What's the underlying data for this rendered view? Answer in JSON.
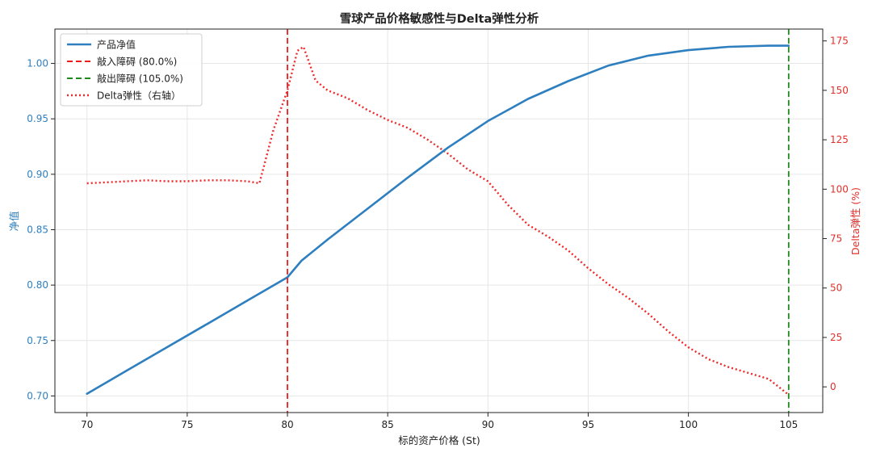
{
  "chart_data": {
    "type": "line",
    "title": "雪球产品价格敏感性与Delta弹性分析",
    "xlabel": "标的资产价格 (St)",
    "ylabel_left": "净值",
    "ylabel_right": "Delta弹性 (%)",
    "xlim": [
      68.4,
      106.7
    ],
    "ylim_left": [
      0.685,
      1.031
    ],
    "ylim_right": [
      -13,
      181
    ],
    "x_ticks": [
      70,
      75,
      80,
      85,
      90,
      95,
      100,
      105
    ],
    "y_ticks_left": [
      0.7,
      0.75,
      0.8,
      0.85,
      0.9,
      0.95,
      1.0
    ],
    "y_ticks_right": [
      0,
      25,
      50,
      75,
      100,
      125,
      150,
      175
    ],
    "grid": true,
    "legend_position": "upper-left",
    "colors": {
      "nav": "#2e7fbf",
      "knock_in": "#ee1c1c",
      "knock_out": "#1e8a1e",
      "delta": "#ef2a2a",
      "left_axis": "#2e7fbf",
      "right_axis": "#e0302b"
    },
    "legend": [
      {
        "label": "产品净值",
        "style": "solid",
        "color": "#2e7fbf"
      },
      {
        "label": "敲入障碍 (80.0%)",
        "style": "dashed",
        "color": "#ee1c1c"
      },
      {
        "label": "敲出障碍 (105.0%)",
        "style": "dashed",
        "color": "#1e8a1e"
      },
      {
        "label": "Delta弹性（右轴）",
        "style": "dotted",
        "color": "#ef2a2a"
      }
    ],
    "vlines": [
      {
        "name": "敲入障碍 (80.0%)",
        "x": 80,
        "color": "#ee1c1c"
      },
      {
        "name": "敲出障碍 (105.0%)",
        "x": 105,
        "color": "#1e8a1e"
      }
    ],
    "series": [
      {
        "name": "产品净值",
        "axis": "left",
        "x": [
          70,
          72,
          74,
          76,
          78,
          80,
          80.7,
          82,
          84,
          86,
          88,
          90,
          92,
          94,
          96,
          98,
          100,
          102,
          104,
          105
        ],
        "y": [
          0.702,
          0.723,
          0.744,
          0.765,
          0.786,
          0.807,
          0.822,
          0.841,
          0.869,
          0.897,
          0.924,
          0.948,
          0.968,
          0.984,
          0.998,
          1.007,
          1.012,
          1.015,
          1.016,
          1.016
        ]
      },
      {
        "name": "Delta弹性（右轴）",
        "axis": "right",
        "x": [
          70,
          71,
          72,
          73,
          74,
          75,
          76,
          77,
          78,
          78.6,
          79.3,
          80,
          80.5,
          80.8,
          81.4,
          82,
          83,
          84,
          85,
          86,
          87,
          88,
          89,
          90,
          91,
          92,
          93,
          94,
          95,
          96,
          97,
          98,
          99,
          100,
          101,
          102,
          103,
          104,
          105
        ],
        "y": [
          103,
          103.5,
          104,
          104.5,
          104,
          104,
          104.5,
          104.5,
          104,
          103,
          130,
          150,
          170,
          172,
          155,
          150,
          146,
          140,
          135,
          131,
          125,
          118,
          110,
          104,
          92,
          82,
          76,
          69,
          60,
          52,
          45,
          37,
          28,
          20,
          14,
          10,
          7,
          4,
          -4
        ]
      }
    ]
  }
}
